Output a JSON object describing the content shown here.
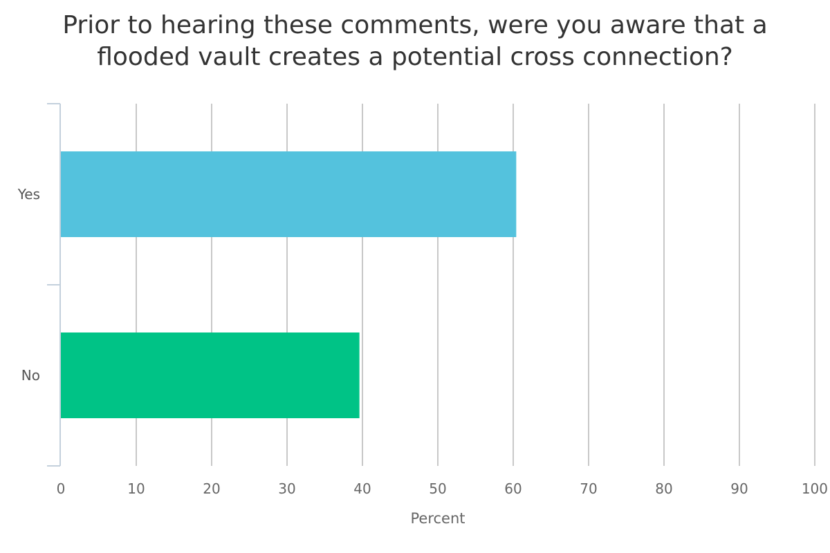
{
  "chart_data": {
    "type": "bar",
    "orientation": "horizontal",
    "title_lines": [
      "Prior to hearing these comments, were you aware that a",
      "flooded vault creates a potential cross connection?"
    ],
    "categories": [
      "Yes",
      "No"
    ],
    "values": [
      60.4,
      39.6
    ],
    "colors": [
      "#54c2dd",
      "#00c386"
    ],
    "xlabel": "Percent",
    "ylabel": "",
    "xlim": [
      0,
      100
    ],
    "x_ticks": [
      0,
      10,
      20,
      30,
      40,
      50,
      60,
      70,
      80,
      90,
      100
    ],
    "grid": true,
    "legend": "none"
  },
  "style": {
    "grid_color": "#c8c8c8",
    "axis_color": "#c3d0dc"
  }
}
